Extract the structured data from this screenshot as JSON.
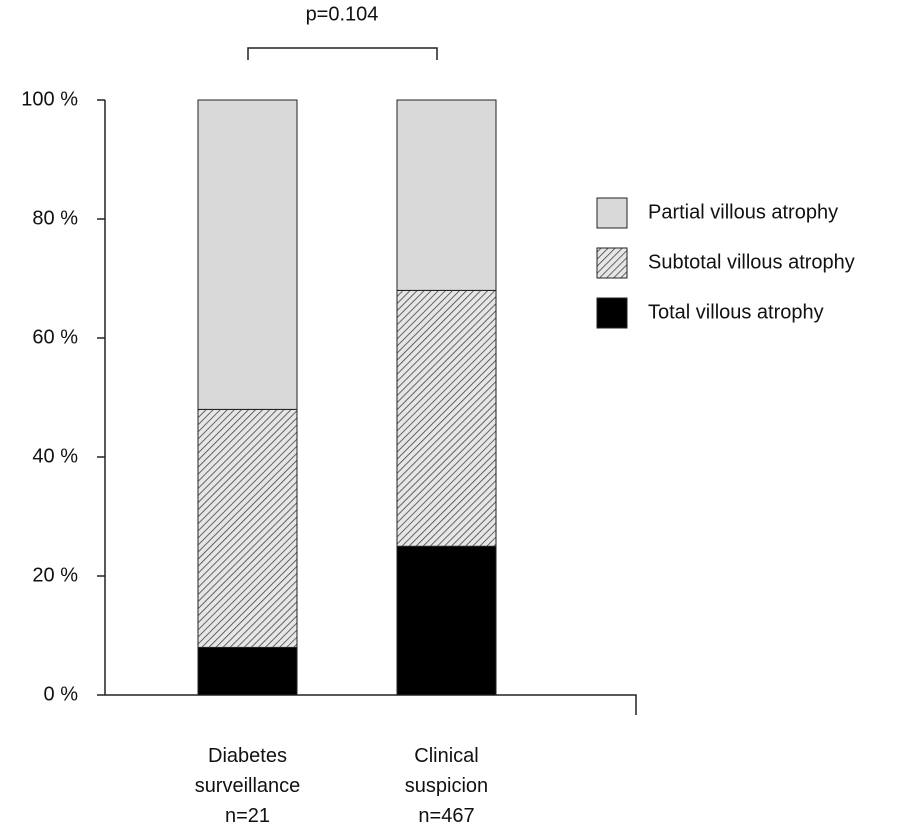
{
  "chart_data": {
    "type": "stacked_bar",
    "annotation": "p=0.104",
    "categories": [
      "Diabetes\nsurveillance\nn=21",
      "Clinical\nsuspicion\nn=467"
    ],
    "series": [
      {
        "name": "Total villous atrophy",
        "color": "#000000",
        "values": [
          8,
          25
        ]
      },
      {
        "name": "Subtotal villous atrophy",
        "color": "#bdbdbd",
        "pattern": "hatch",
        "values": [
          40,
          43
        ]
      },
      {
        "name": "Partial villous atrophy",
        "color": "#d9d9d9",
        "values": [
          52,
          32
        ]
      }
    ],
    "ylim": [
      0,
      100
    ],
    "yticks": [
      {
        "value": 0,
        "label": "0 %"
      },
      {
        "value": 20,
        "label": "20 %"
      },
      {
        "value": 40,
        "label": "40 %"
      },
      {
        "value": 60,
        "label": "60 %"
      },
      {
        "value": 80,
        "label": "80 %"
      },
      {
        "value": 100,
        "label": "100 %"
      }
    ],
    "legend": "right"
  }
}
